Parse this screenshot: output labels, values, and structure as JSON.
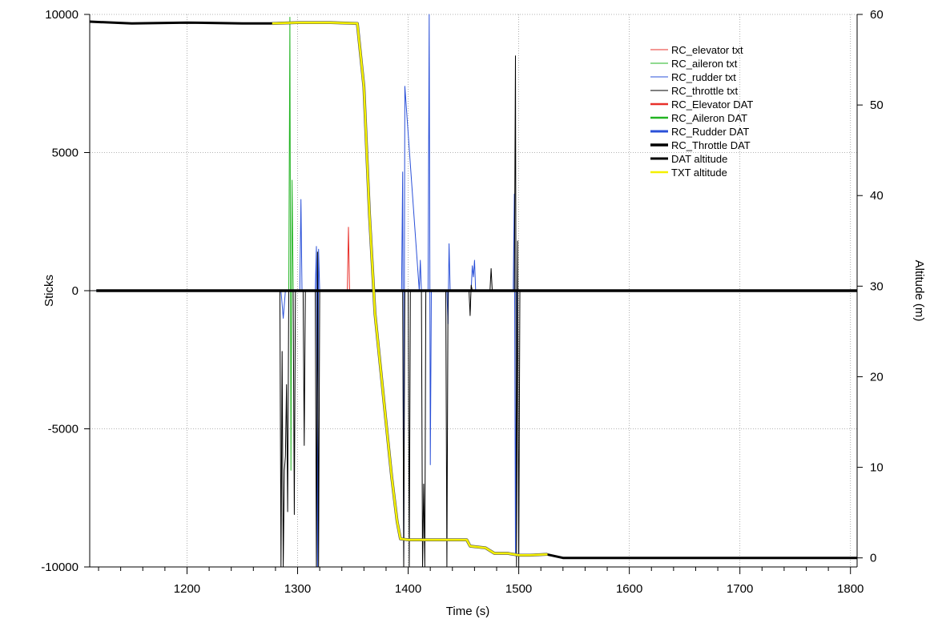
{
  "chart_data": {
    "type": "line",
    "title": "",
    "xlabel": "Time (s)",
    "ylabel": "Sticks",
    "y2label": "Altitude (m)",
    "xlim": [
      1112,
      1806
    ],
    "ylim": [
      -10000,
      10000
    ],
    "y2lim": [
      -1,
      60
    ],
    "xticks": [
      1200,
      1300,
      1400,
      1500,
      1600,
      1700,
      1800
    ],
    "yticks": [
      -10000,
      -5000,
      0,
      5000,
      10000
    ],
    "y2ticks": [
      0,
      10,
      20,
      30,
      40,
      50,
      60
    ],
    "grid": true,
    "legend_position": "top-right",
    "series": [
      {
        "name": "RC_elevator txt",
        "axis": "left",
        "color": "#e8302a",
        "width": 1,
        "x": [
          1112,
          1345,
          1346,
          1347,
          1348,
          1806
        ],
        "y": [
          0,
          0,
          2300,
          0,
          0,
          0
        ]
      },
      {
        "name": "RC_aileron txt",
        "axis": "left",
        "color": "#22b422",
        "width": 1,
        "x": [
          1112,
          1292,
          1293,
          1294,
          1295,
          1296,
          1806
        ],
        "y": [
          0,
          0,
          9900,
          -6500,
          4000,
          0,
          0
        ]
      },
      {
        "name": "RC_rudder txt",
        "axis": "left",
        "color": "#2a50d8",
        "width": 1,
        "x": [
          1112,
          1285,
          1287,
          1289,
          1302,
          1303,
          1304,
          1316,
          1317,
          1318,
          1319,
          1320,
          1394,
          1395,
          1396,
          1397,
          1410,
          1411,
          1412,
          1418,
          1419,
          1420,
          1421,
          1435,
          1436,
          1437,
          1438,
          1457,
          1458,
          1459,
          1460,
          1461,
          1495,
          1496,
          1497,
          1498,
          1806
        ],
        "y": [
          0,
          0,
          -1000,
          0,
          0,
          3300,
          0,
          0,
          1600,
          -10000,
          1500,
          0,
          0,
          4300,
          -9800,
          7400,
          0,
          1100,
          0,
          0,
          10000,
          -6300,
          0,
          0,
          -1200,
          1700,
          0,
          0,
          900,
          500,
          1100,
          0,
          0,
          3500,
          -9600,
          0,
          0
        ]
      },
      {
        "name": "RC_throttle txt",
        "axis": "left",
        "color": "#000000",
        "width": 1,
        "x": [
          1112,
          1284,
          1285,
          1286,
          1287,
          1288,
          1289,
          1290,
          1291,
          1292,
          1296,
          1297,
          1298,
          1305,
          1306,
          1307,
          1316,
          1317,
          1318,
          1319,
          1320,
          1395,
          1396,
          1397,
          1400,
          1401,
          1402,
          1412,
          1413,
          1414,
          1415,
          1416,
          1434,
          1435,
          1436,
          1455,
          1456,
          1457,
          1458,
          1474,
          1475,
          1476,
          1496,
          1497,
          1498,
          1499,
          1500,
          1501,
          1502,
          1806
        ],
        "y": [
          0,
          0,
          -10000,
          -2200,
          -10000,
          -6500,
          -6000,
          -3400,
          -8000,
          0,
          0,
          -8100,
          0,
          0,
          -5600,
          0,
          0,
          -10000,
          1400,
          -10000,
          0,
          0,
          -10000,
          0,
          0,
          -10000,
          0,
          0,
          -10000,
          -7000,
          -10000,
          0,
          0,
          -10000,
          0,
          0,
          -900,
          200,
          0,
          0,
          800,
          0,
          0,
          8500,
          -10000,
          1800,
          -10000,
          0,
          0,
          0
        ]
      },
      {
        "name": "RC_Elevator DAT",
        "axis": "left",
        "color": "#e8302a",
        "width": 2.5,
        "x": [
          1118,
          1806
        ],
        "y": [
          0,
          0
        ]
      },
      {
        "name": "RC_Aileron DAT",
        "axis": "left",
        "color": "#22b422",
        "width": 2.5,
        "x": [
          1118,
          1806
        ],
        "y": [
          0,
          0
        ]
      },
      {
        "name": "RC_Rudder DAT",
        "axis": "left",
        "color": "#2a50d8",
        "width": 3,
        "x": [
          1118,
          1806
        ],
        "y": [
          0,
          0
        ]
      },
      {
        "name": "RC_Throttle DAT",
        "axis": "left",
        "color": "#000000",
        "width": 3.5,
        "x": [
          1118,
          1806
        ],
        "y": [
          0,
          0
        ]
      },
      {
        "name": "DAT altitude",
        "axis": "right",
        "color": "#000000",
        "width": 3,
        "x": [
          1112,
          1150,
          1200,
          1250,
          1275,
          1300,
          1330,
          1354,
          1360,
          1365,
          1370,
          1375,
          1380,
          1385,
          1390,
          1393,
          1400,
          1420,
          1440,
          1453,
          1456,
          1470,
          1478,
          1490,
          1500,
          1510,
          1525,
          1540,
          1550,
          1600,
          1700,
          1806
        ],
        "y": [
          59.2,
          59.0,
          59.1,
          59.0,
          59.0,
          59.1,
          59.1,
          59.0,
          52,
          38,
          27,
          21,
          15,
          9,
          4,
          2.1,
          2.0,
          2.0,
          2.0,
          2.0,
          1.3,
          1.1,
          0.5,
          0.5,
          0.3,
          0.3,
          0.4,
          0,
          0,
          0,
          0,
          0
        ]
      },
      {
        "name": "TXT altitude",
        "axis": "right",
        "color": "#f4f000",
        "width": 2.5,
        "x": [
          1277,
          1300,
          1330,
          1354,
          1360,
          1365,
          1370,
          1375,
          1380,
          1385,
          1390,
          1393,
          1400,
          1420,
          1440,
          1453,
          1456,
          1470,
          1478,
          1490,
          1500,
          1510,
          1526
        ],
        "y": [
          59.0,
          59.1,
          59.1,
          59.0,
          52,
          38,
          27,
          21,
          15,
          9,
          4,
          2.1,
          2.0,
          2.0,
          2.0,
          2.0,
          1.3,
          1.1,
          0.5,
          0.5,
          0.3,
          0.3,
          0.4
        ]
      }
    ]
  }
}
